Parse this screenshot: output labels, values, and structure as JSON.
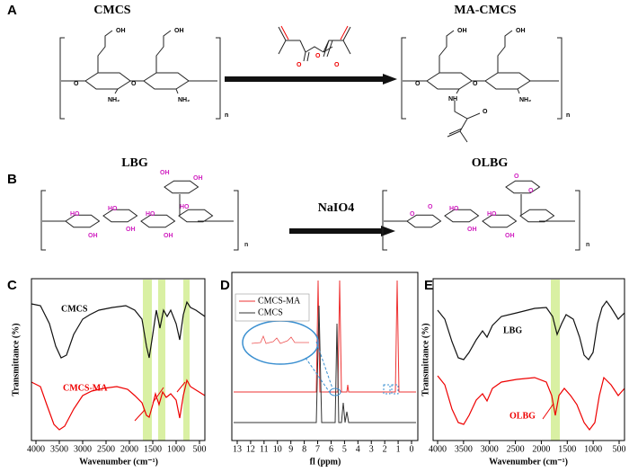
{
  "panels": [
    {
      "label": "A",
      "reactant": "CMCS",
      "product": "MA-CMCS",
      "reactant_groups": [
        "OH",
        "OH",
        "O",
        "O",
        "NH₂",
        "NH₂",
        "n"
      ],
      "reagent_atoms": [
        "O",
        "O",
        "O"
      ],
      "product_groups": [
        "OH",
        "OH",
        "O",
        "O",
        "NH",
        "O",
        "NH₂",
        "n"
      ]
    },
    {
      "label": "B",
      "reactant": "LBG",
      "product": "OLBG",
      "reagent": "NaIO4",
      "reactant_groups": [
        "HO",
        "OH",
        "HO",
        "OH",
        "HO",
        "OH",
        "HO",
        "OH",
        "OH",
        "n"
      ],
      "product_groups": [
        "O",
        "O",
        "HO",
        "OH",
        "HO",
        "OH",
        "O",
        "O",
        "n"
      ]
    },
    {
      "label": "C",
      "x_label": "Wavenumber (cm⁻¹)",
      "y_label": "Transmittance (%)",
      "xticks": [
        4000,
        3500,
        3000,
        2500,
        2000,
        1500,
        1000,
        500
      ],
      "curves": [
        "CMCS",
        "CMCS-MA"
      ]
    },
    {
      "label": "D",
      "x_label": "fl (ppm)",
      "xticks": [
        13,
        12,
        11,
        10,
        9,
        8,
        7,
        6,
        5,
        4,
        3,
        2,
        1,
        0
      ],
      "legend": [
        "CMCS-MA",
        "CMCS"
      ]
    },
    {
      "label": "E",
      "x_label": "Wavenumber (cm⁻¹)",
      "y_label": "Transmittance (%)",
      "xticks": [
        4000,
        3500,
        3000,
        2500,
        2000,
        1500,
        1000,
        500
      ],
      "curves": [
        "LBG",
        "OLBG"
      ]
    }
  ]
}
